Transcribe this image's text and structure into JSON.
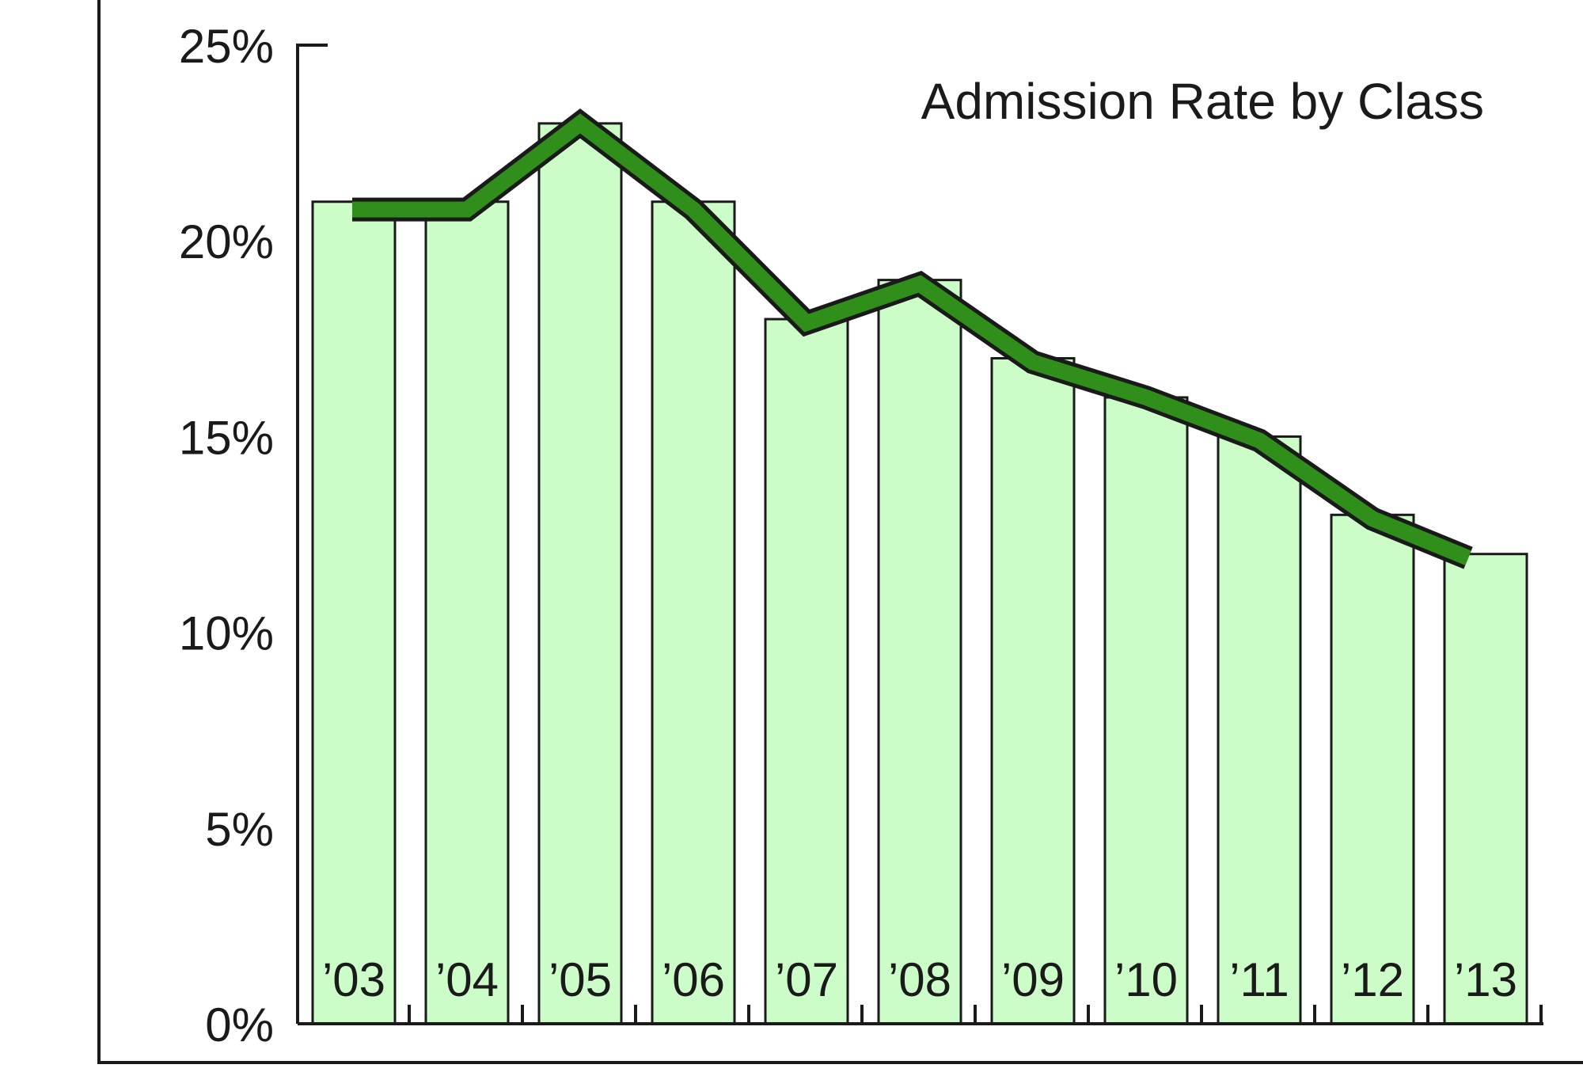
{
  "chart_data": {
    "type": "bar",
    "title": "Admission Rate by Class",
    "categories": [
      "’03",
      "’04",
      "’05",
      "’06",
      "’07",
      "’08",
      "’09",
      "’10",
      "’11",
      "’12",
      "’13"
    ],
    "series": [
      {
        "kind": "bar",
        "values": [
          21,
          21,
          23,
          21,
          18,
          19,
          17,
          16,
          15,
          13,
          12
        ]
      },
      {
        "kind": "line",
        "values": [
          20.8,
          20.8,
          23,
          20.8,
          17.9,
          18.9,
          16.9,
          16.0,
          14.9,
          12.9,
          11.9
        ]
      }
    ],
    "yticks": [
      "0%",
      "5%",
      "10%",
      "15%",
      "20%",
      "25%"
    ],
    "ylim": [
      0,
      25
    ],
    "grid": false,
    "colors": {
      "bar_fill": "#ccfcc8",
      "bar_stroke": "#1a1a1a",
      "line": "#2f8f1a",
      "line_outline": "#1a1a1a"
    }
  }
}
